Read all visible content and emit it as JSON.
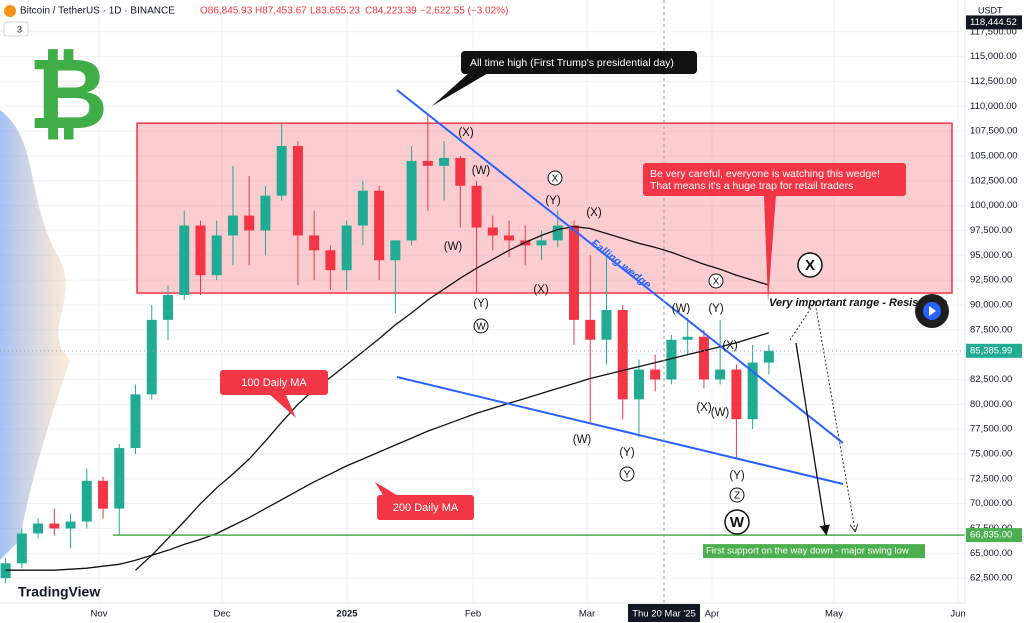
{
  "header": {
    "symbol": "Bitcoin / TetherUS · 1D · BINANCE",
    "open": "O86,845.93",
    "high": "H87,453.67",
    "low": "L83,655.23",
    "close": "C84,223.39",
    "change": "−2,622.55 (−3.02%)",
    "indicator_count": "3",
    "currency": "USDT",
    "brand": "TradingView"
  },
  "chart_data": {
    "type": "candlestick",
    "logo_symbol": "₿",
    "ylim": [
      60000,
      120700
    ],
    "yticks": [
      {
        "value": 62500,
        "label": "62,500.00"
      },
      {
        "value": 65000,
        "label": "65,000.00"
      },
      {
        "value": 67500,
        "label": "67,500.00"
      },
      {
        "value": 70000,
        "label": "70,000.00"
      },
      {
        "value": 72500,
        "label": "72,500.00"
      },
      {
        "value": 75000,
        "label": "75,000.00"
      },
      {
        "value": 77500,
        "label": "77,500.00"
      },
      {
        "value": 80000,
        "label": "80,000.00"
      },
      {
        "value": 82500,
        "label": "82,500.00"
      },
      {
        "value": 85000,
        "label": "85,000.00"
      },
      {
        "value": 87500,
        "label": "87,500.00"
      },
      {
        "value": 90000,
        "label": "90,000.00"
      },
      {
        "value": 92500,
        "label": "92,500.00"
      },
      {
        "value": 95000,
        "label": "95,000.00"
      },
      {
        "value": 97500,
        "label": "97,500.00"
      },
      {
        "value": 100000,
        "label": "100,000.00"
      },
      {
        "value": 102500,
        "label": "102,500.00"
      },
      {
        "value": 105000,
        "label": "105,000.00"
      },
      {
        "value": 107500,
        "label": "107,500.00"
      },
      {
        "value": 110000,
        "label": "110,000.00"
      },
      {
        "value": 112500,
        "label": "112,500.00"
      },
      {
        "value": 115000,
        "label": "115,000.00"
      },
      {
        "value": 117500,
        "label": "117,500.00"
      }
    ],
    "x_axis_labels": [
      "Nov",
      "Dec",
      "2025",
      "Feb",
      "Mar",
      "Apr",
      "May",
      "Jun"
    ],
    "crosshair_label": "Thu 20 Mar '25",
    "up_color": "#22ab94",
    "down_color": "#f23645",
    "open": [
      62500,
      64000,
      67000,
      68000,
      67500,
      68200,
      72300,
      69500,
      75600,
      81000,
      88500,
      91000,
      98000,
      93000,
      97000,
      99000,
      97500,
      101000,
      106000,
      97000,
      95500,
      93500,
      98000,
      101500,
      94500,
      96500,
      104500,
      104000,
      104800,
      102000,
      97800,
      97000,
      96500,
      96000,
      96500,
      98000,
      88500,
      86500,
      89500,
      80500,
      83500,
      82500,
      86500,
      86800,
      82500,
      83500,
      78500,
      84200
    ],
    "high": [
      64500,
      67500,
      68500,
      69500,
      69000,
      73500,
      72700,
      76000,
      82000,
      90000,
      92000,
      99500,
      98500,
      98500,
      104000,
      103000,
      102000,
      108300,
      106500,
      99500,
      96000,
      98500,
      102500,
      102000,
      96000,
      106000,
      109300,
      106500,
      105000,
      102500,
      99000,
      98500,
      98000,
      97500,
      99500,
      98500,
      95000,
      95000,
      90000,
      84500,
      85000,
      87000,
      88700,
      87500,
      88500,
      84000,
      86000,
      86000
    ],
    "low": [
      62000,
      63500,
      66500,
      66800,
      65500,
      67500,
      68500,
      66800,
      75000,
      80500,
      86500,
      90500,
      91000,
      92500,
      94000,
      94000,
      95000,
      100500,
      92000,
      92500,
      91500,
      91500,
      96000,
      92500,
      89200,
      96000,
      99500,
      100500,
      97800,
      91200,
      95500,
      94800,
      94000,
      94500,
      95800,
      86000,
      78200,
      84000,
      78500,
      76700,
      81300,
      82000,
      85000,
      81600,
      82000,
      74500,
      77500,
      83000
    ],
    "close": [
      64000,
      67000,
      68000,
      67500,
      68200,
      72300,
      69500,
      75600,
      81000,
      88500,
      91000,
      98000,
      93000,
      97000,
      99000,
      97500,
      101000,
      106000,
      97000,
      95500,
      93500,
      98000,
      101500,
      94500,
      96500,
      104500,
      104000,
      104800,
      102000,
      97800,
      97000,
      96500,
      96000,
      96500,
      98000,
      88500,
      86500,
      89500,
      80500,
      83500,
      82500,
      86500,
      86800,
      82500,
      83500,
      78500,
      84200,
      85386
    ],
    "series": [
      {
        "name": "100 Daily MA",
        "color": "#111111",
        "values": [
          null,
          null,
          null,
          null,
          null,
          null,
          null,
          null,
          63300,
          64800,
          66500,
          68200,
          70000,
          71600,
          73000,
          74500,
          76300,
          78200,
          80000,
          81500,
          82700,
          84000,
          85300,
          86600,
          88000,
          89200,
          90500,
          91600,
          92700,
          93700,
          94600,
          95500,
          96300,
          97000,
          97600,
          97900,
          97700,
          97200,
          96700,
          96200,
          95800,
          95300,
          94700,
          94100,
          93600,
          93000,
          92500,
          92000
        ]
      },
      {
        "name": "200 Daily MA",
        "color": "#111111",
        "values": [
          63300,
          63300,
          63300,
          63300,
          63400,
          63500,
          63700,
          63900,
          64300,
          64800,
          65300,
          65900,
          66400,
          67000,
          67800,
          68600,
          69500,
          70400,
          71300,
          72200,
          73000,
          73800,
          74500,
          75200,
          75900,
          76600,
          77300,
          77900,
          78500,
          79100,
          79600,
          80100,
          80600,
          81100,
          81600,
          82100,
          82600,
          83000,
          83400,
          83800,
          84200,
          84600,
          85000,
          85400,
          85800,
          86200,
          86700,
          87200
        ]
      }
    ],
    "resistance_zone": [
      91200,
      108300
    ],
    "resistance_label": "Very important range - Resistance",
    "falling_wedge": {
      "label": "Falling wedge",
      "upper": [
        111640,
        76100
      ],
      "lower": [
        82750,
        71980
      ],
      "color": "#2962ff"
    },
    "support": {
      "value": 66835,
      "label": "66,835.00",
      "note": "First support on the way down - major swing low"
    },
    "last_price": {
      "value": 85385.99,
      "label": "85,385.99"
    },
    "high_marker": {
      "value": 118444.52,
      "label": "118,444.52"
    },
    "callouts": [
      "All time high (First Trump's presidential day)",
      "Be very careful, everyone is watching this wedge! That means it's a huge trap for retail traders"
    ],
    "wave_labels": [
      {
        "text": "(X)"
      },
      {
        "text": "(W)"
      },
      {
        "text": "(W)"
      },
      {
        "text": "(Y)"
      },
      {
        "text": "W",
        "circled": true
      },
      {
        "text": "(Y)"
      },
      {
        "text": "X",
        "circled": true
      },
      {
        "text": "(X)"
      },
      {
        "text": "(X)"
      },
      {
        "text": "(W)"
      },
      {
        "text": "(Y)"
      },
      {
        "text": "Y",
        "circled": true
      },
      {
        "text": "X",
        "circled": true
      },
      {
        "text": "(W)"
      },
      {
        "text": "(Y)"
      },
      {
        "text": "(X)"
      },
      {
        "text": "(X)"
      },
      {
        "text": "(W)"
      },
      {
        "text": "(Y)"
      },
      {
        "text": "Z",
        "circled": true
      },
      {
        "text": "X",
        "circled": true,
        "large": true
      },
      {
        "text": "W",
        "circled": true,
        "large": true
      }
    ]
  }
}
